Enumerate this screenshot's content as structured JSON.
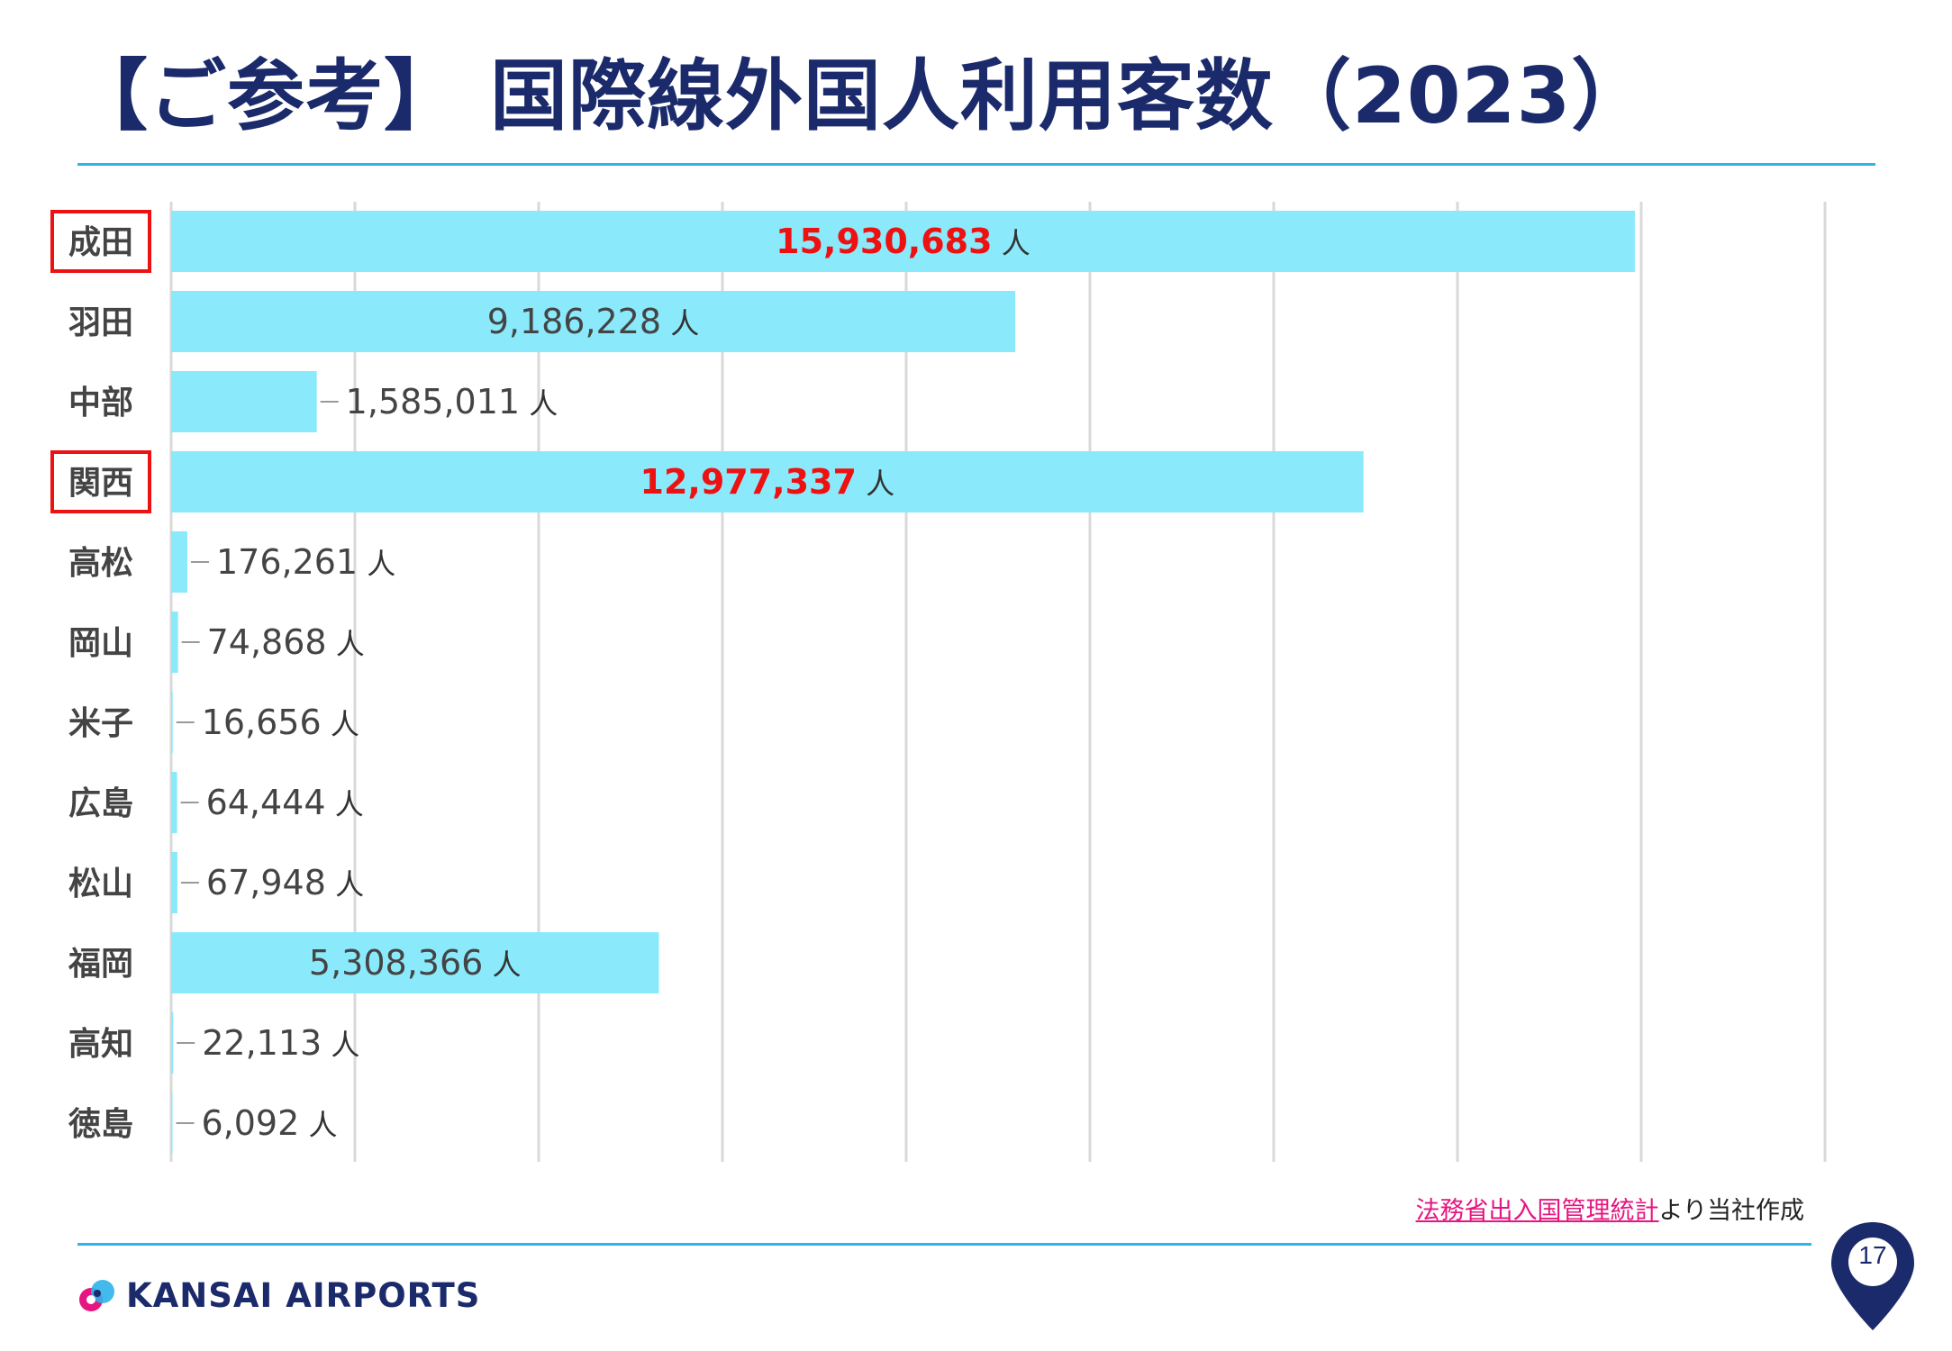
{
  "header": {
    "title": "【ご参考】 国際線外国人利用客数（2023）"
  },
  "colors": {
    "bar": "#8ae9fb",
    "title": "#1b2a6b",
    "accent_line": "#2eb3ea",
    "highlight_red": "#ee1111",
    "label_gray": "#444444",
    "grid": "#d9d9d9",
    "link_pink": "#e6157f"
  },
  "chart_data": {
    "type": "bar",
    "orientation": "horizontal",
    "categories": [
      "成田",
      "羽田",
      "中部",
      "関西",
      "高松",
      "岡山",
      "米子",
      "広島",
      "松山",
      "福岡",
      "高知",
      "徳島"
    ],
    "values": [
      15930683,
      9186228,
      1585011,
      12977337,
      176261,
      74868,
      16656,
      64444,
      67948,
      5308366,
      22113,
      6092
    ],
    "value_labels": [
      "15,930,683",
      "9,186,228",
      "1,585,011",
      "12,977,337",
      "176,261",
      "74,868",
      "16,656",
      "64,444",
      "67,948",
      "5,308,366",
      "22,113",
      "6,092"
    ],
    "unit": "人",
    "highlighted_categories": [
      "成田",
      "関西"
    ],
    "xlim": [
      0,
      18000000
    ],
    "grid": true,
    "legend": "none",
    "title": "",
    "xlabel": "",
    "ylabel": ""
  },
  "footer": {
    "source_link": "法務省出入国管理統計",
    "source_suffix": "より当社作成",
    "logo_text": "KANSAI AIRPORTS",
    "page_number": "17"
  }
}
